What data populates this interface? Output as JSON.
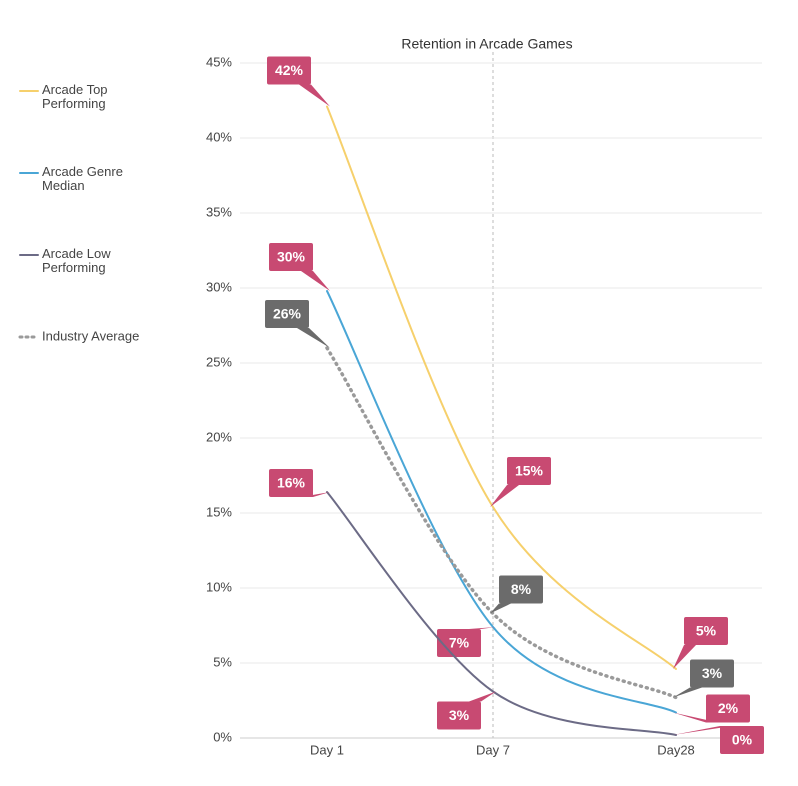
{
  "chart_data": {
    "type": "line",
    "title": "Retention in Arcade Games",
    "categories": [
      "Day 1",
      "Day 7",
      "Day28"
    ],
    "series": [
      {
        "name": "Arcade Top Performing",
        "color": "#f6d06c",
        "label_color": "#c84a72",
        "dash": false,
        "values": [
          42.1,
          15.4,
          4.6
        ],
        "value_labels": [
          "42%",
          "15%",
          "5%"
        ]
      },
      {
        "name": "Arcade Genre Median",
        "color": "#4aa6d6",
        "label_color": "#c84a72",
        "dash": false,
        "values": [
          29.8,
          7.4,
          1.7
        ],
        "value_labels": [
          "30%",
          "7%",
          "2%"
        ]
      },
      {
        "name": "Arcade Low Performing",
        "color": "#6c6b86",
        "label_color": "#c84a72",
        "dash": false,
        "values": [
          16.4,
          3.1,
          0.2
        ],
        "value_labels": [
          "16%",
          "3%",
          "0%"
        ]
      },
      {
        "name": "Industry Average",
        "color": "#9a9a9a",
        "label_color": "#6b6b6b",
        "dash": true,
        "values": [
          26.0,
          8.3,
          2.7
        ],
        "value_labels": [
          "26%",
          "8%",
          "3%"
        ]
      }
    ],
    "ylim": [
      0,
      45
    ],
    "yticks": [
      {
        "value": 0,
        "label": "0%"
      },
      {
        "value": 5,
        "label": "5%"
      },
      {
        "value": 10,
        "label": "10%"
      },
      {
        "value": 15,
        "label": "15%"
      },
      {
        "value": 20,
        "label": "20%"
      },
      {
        "value": 25,
        "label": "25%"
      },
      {
        "value": 30,
        "label": "30%"
      },
      {
        "value": 35,
        "label": "35%"
      },
      {
        "value": 40,
        "label": "40%"
      },
      {
        "value": 45,
        "label": "45%"
      }
    ],
    "grid": true,
    "legend": "left"
  }
}
